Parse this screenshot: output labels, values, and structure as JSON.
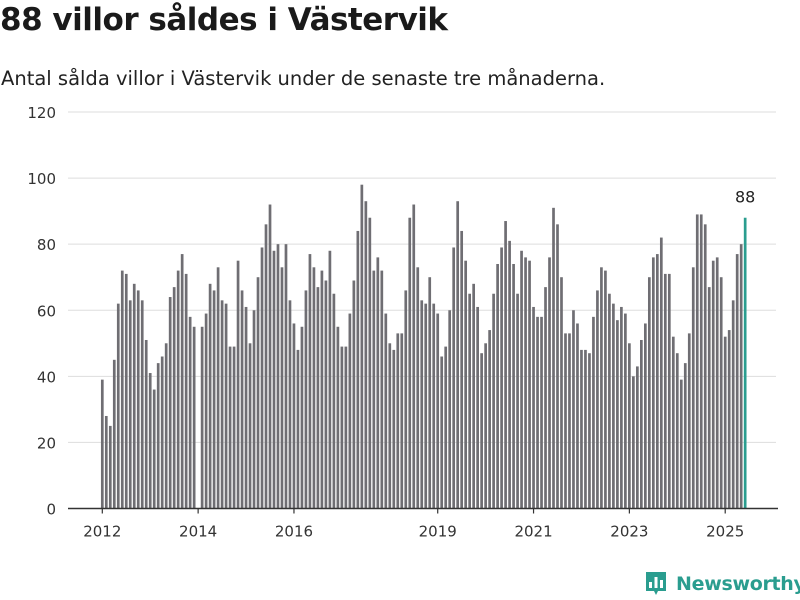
{
  "header": {
    "title": "88 villor såldes i Västervik",
    "subtitle": "Antal sålda villor i Västervik under de senaste tre månaderna."
  },
  "brand": {
    "name": "Newsworthy",
    "logo_icon": "newsworthy-bar-chart-icon"
  },
  "colors": {
    "bar": "#6f6e73",
    "highlight": "#2a9d8f",
    "grid": "#dddddd",
    "axis": "#333333",
    "brand": "#2a9d8f"
  },
  "chart_data": {
    "type": "bar",
    "title": "",
    "xlabel": "",
    "ylabel": "",
    "ylim": [
      0,
      120
    ],
    "y_ticks": [
      0,
      20,
      40,
      60,
      80,
      100,
      120
    ],
    "x_tick_labels": [
      "2012",
      "2014",
      "2016",
      "2019",
      "2021",
      "2023",
      "2025"
    ],
    "start": "2012-01",
    "end": "2025-06",
    "grid": true,
    "annotation": {
      "label": "88",
      "date": "2025-06"
    },
    "series": [
      {
        "values": [
          39,
          28,
          25,
          45,
          62,
          72,
          71,
          63,
          68,
          66,
          63,
          51,
          41,
          36,
          44,
          46,
          50,
          64,
          67,
          72,
          77,
          71,
          58,
          55,
          null,
          55,
          59,
          68,
          66,
          73,
          63,
          62,
          49,
          49,
          75,
          66,
          61,
          50,
          60,
          70,
          79,
          86,
          92,
          78,
          80,
          73,
          80,
          63,
          56,
          48,
          55,
          66,
          77,
          73,
          67,
          72,
          69,
          78,
          65,
          55,
          49,
          49,
          59,
          69,
          84,
          98,
          93,
          88,
          72,
          76,
          72,
          59,
          50,
          48,
          53,
          53,
          66,
          88,
          92,
          73,
          63,
          62,
          70,
          62,
          59,
          46,
          49,
          60,
          79,
          93,
          84,
          75,
          65,
          68,
          61,
          47,
          50,
          54,
          65,
          74,
          79,
          87,
          81,
          74,
          65,
          78,
          76,
          75,
          61,
          58,
          58,
          67,
          76,
          91,
          86,
          70,
          53,
          53,
          60,
          56,
          48,
          48,
          47,
          58,
          66,
          73,
          72,
          65,
          62,
          57,
          61,
          59,
          50,
          40,
          43,
          51,
          56,
          70,
          76,
          77,
          82,
          71,
          71,
          52,
          47,
          39,
          44,
          53,
          73,
          89,
          89,
          86,
          67,
          75,
          76,
          70,
          52,
          54,
          63,
          77,
          80,
          88
        ]
      }
    ]
  }
}
